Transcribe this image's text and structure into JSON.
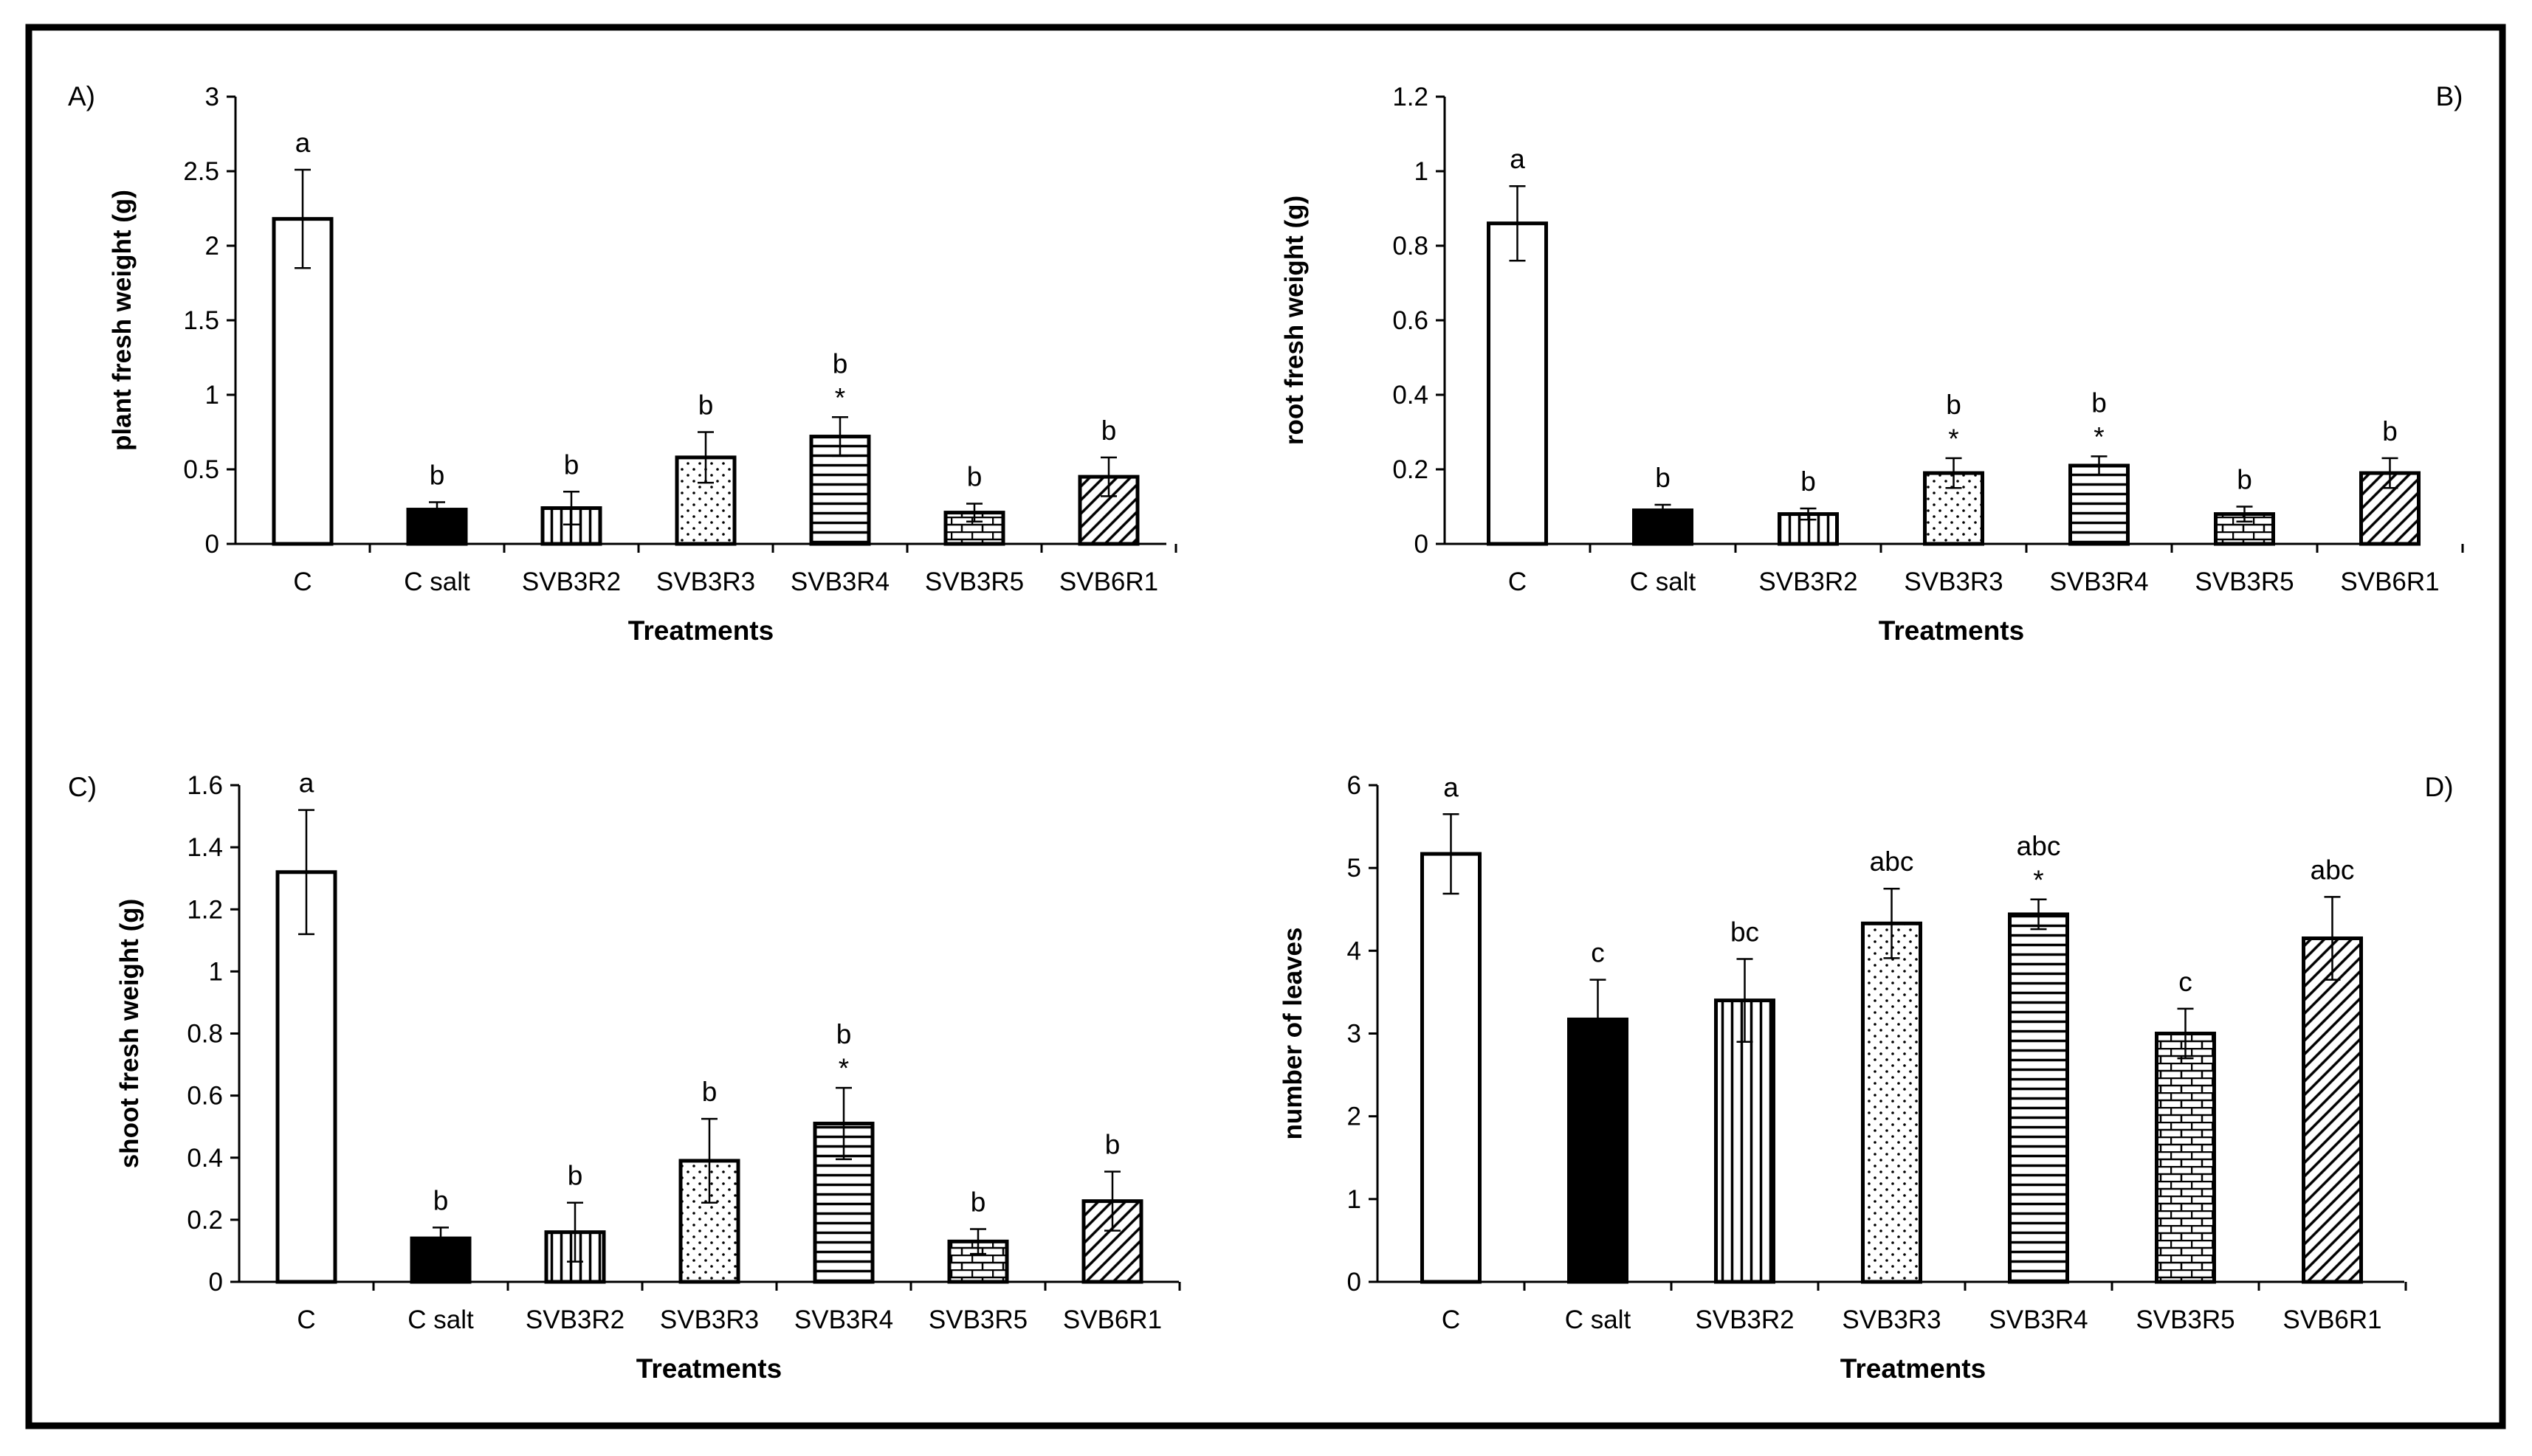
{
  "chart_data": [
    {
      "type": "bar",
      "panel_label": "A)",
      "label_side": "left",
      "title": "",
      "xlabel": "Treatments",
      "ylabel": "plant fresh weight (g)",
      "ylim": [
        0,
        3
      ],
      "yticks": [
        "0",
        "0.5",
        "1",
        "1.5",
        "2",
        "2.5",
        "3"
      ],
      "categories": [
        "C",
        "C salt",
        "SVB3R2",
        "SVB3R3",
        "SVB3R4",
        "SVB3R5",
        "SVB6R1"
      ],
      "values": [
        2.18,
        0.23,
        0.24,
        0.58,
        0.72,
        0.21,
        0.45
      ],
      "errors": [
        0.33,
        0.05,
        0.11,
        0.17,
        0.13,
        0.06,
        0.13
      ],
      "letters": [
        "a",
        "b",
        "b",
        "b",
        "b",
        "b",
        "b"
      ],
      "stars": [
        "",
        "",
        "",
        "",
        "*",
        "",
        ""
      ]
    },
    {
      "type": "bar",
      "panel_label": "B)",
      "label_side": "right",
      "title": "",
      "xlabel": "Treatments",
      "ylabel": "root fresh weight (g)",
      "ylim": [
        0,
        1.2
      ],
      "yticks": [
        "0",
        "0.2",
        "0.4",
        "0.6",
        "0.8",
        "1",
        "1.2"
      ],
      "categories": [
        "C",
        "C salt",
        "SVB3R2",
        "SVB3R3",
        "SVB3R4",
        "SVB3R5",
        "SVB6R1"
      ],
      "values": [
        0.86,
        0.09,
        0.08,
        0.19,
        0.21,
        0.08,
        0.19
      ],
      "errors": [
        0.1,
        0.015,
        0.015,
        0.04,
        0.025,
        0.02,
        0.04
      ],
      "letters": [
        "a",
        "b",
        "b",
        "b",
        "b",
        "b",
        "b"
      ],
      "stars": [
        "",
        "",
        "",
        "*",
        "*",
        "",
        ""
      ]
    },
    {
      "type": "bar",
      "panel_label": "C)",
      "label_side": "left",
      "title": "",
      "xlabel": "Treatments",
      "ylabel": "shoot fresh weight (g)",
      "ylim": [
        0,
        1.6
      ],
      "yticks": [
        "0",
        "0.2",
        "0.4",
        "0.6",
        "0.8",
        "1",
        "1.2",
        "1.4",
        "1.6"
      ],
      "categories": [
        "C",
        "C salt",
        "SVB3R2",
        "SVB3R3",
        "SVB3R4",
        "SVB3R5",
        "SVB6R1"
      ],
      "values": [
        1.32,
        0.14,
        0.16,
        0.39,
        0.51,
        0.13,
        0.26
      ],
      "errors": [
        0.2,
        0.035,
        0.095,
        0.135,
        0.115,
        0.04,
        0.095
      ],
      "letters": [
        "a",
        "b",
        "b",
        "b",
        "b",
        "b",
        "b"
      ],
      "stars": [
        "",
        "",
        "",
        "",
        "*",
        "",
        ""
      ]
    },
    {
      "type": "bar",
      "panel_label": "D)",
      "label_side": "right",
      "title": "",
      "xlabel": "Treatments",
      "ylabel": "number of leaves",
      "ylim": [
        0,
        6
      ],
      "yticks": [
        "0",
        "1",
        "2",
        "3",
        "4",
        "5",
        "6"
      ],
      "categories": [
        "C",
        "C salt",
        "SVB3R2",
        "SVB3R3",
        "SVB3R4",
        "SVB3R5",
        "SVB6R1"
      ],
      "values": [
        5.17,
        3.17,
        3.4,
        4.33,
        4.44,
        3.0,
        4.15
      ],
      "errors": [
        0.48,
        0.48,
        0.5,
        0.42,
        0.18,
        0.3,
        0.5
      ],
      "letters": [
        "a",
        "c",
        "bc",
        "abc",
        "abc",
        "c",
        "abc"
      ],
      "stars": [
        "",
        "",
        "",
        "",
        "*",
        "",
        ""
      ]
    }
  ],
  "patterns": [
    "none",
    "solid",
    "vertical-lines",
    "dots",
    "horizontal-lines",
    "bricks",
    "diagonal-lines"
  ]
}
